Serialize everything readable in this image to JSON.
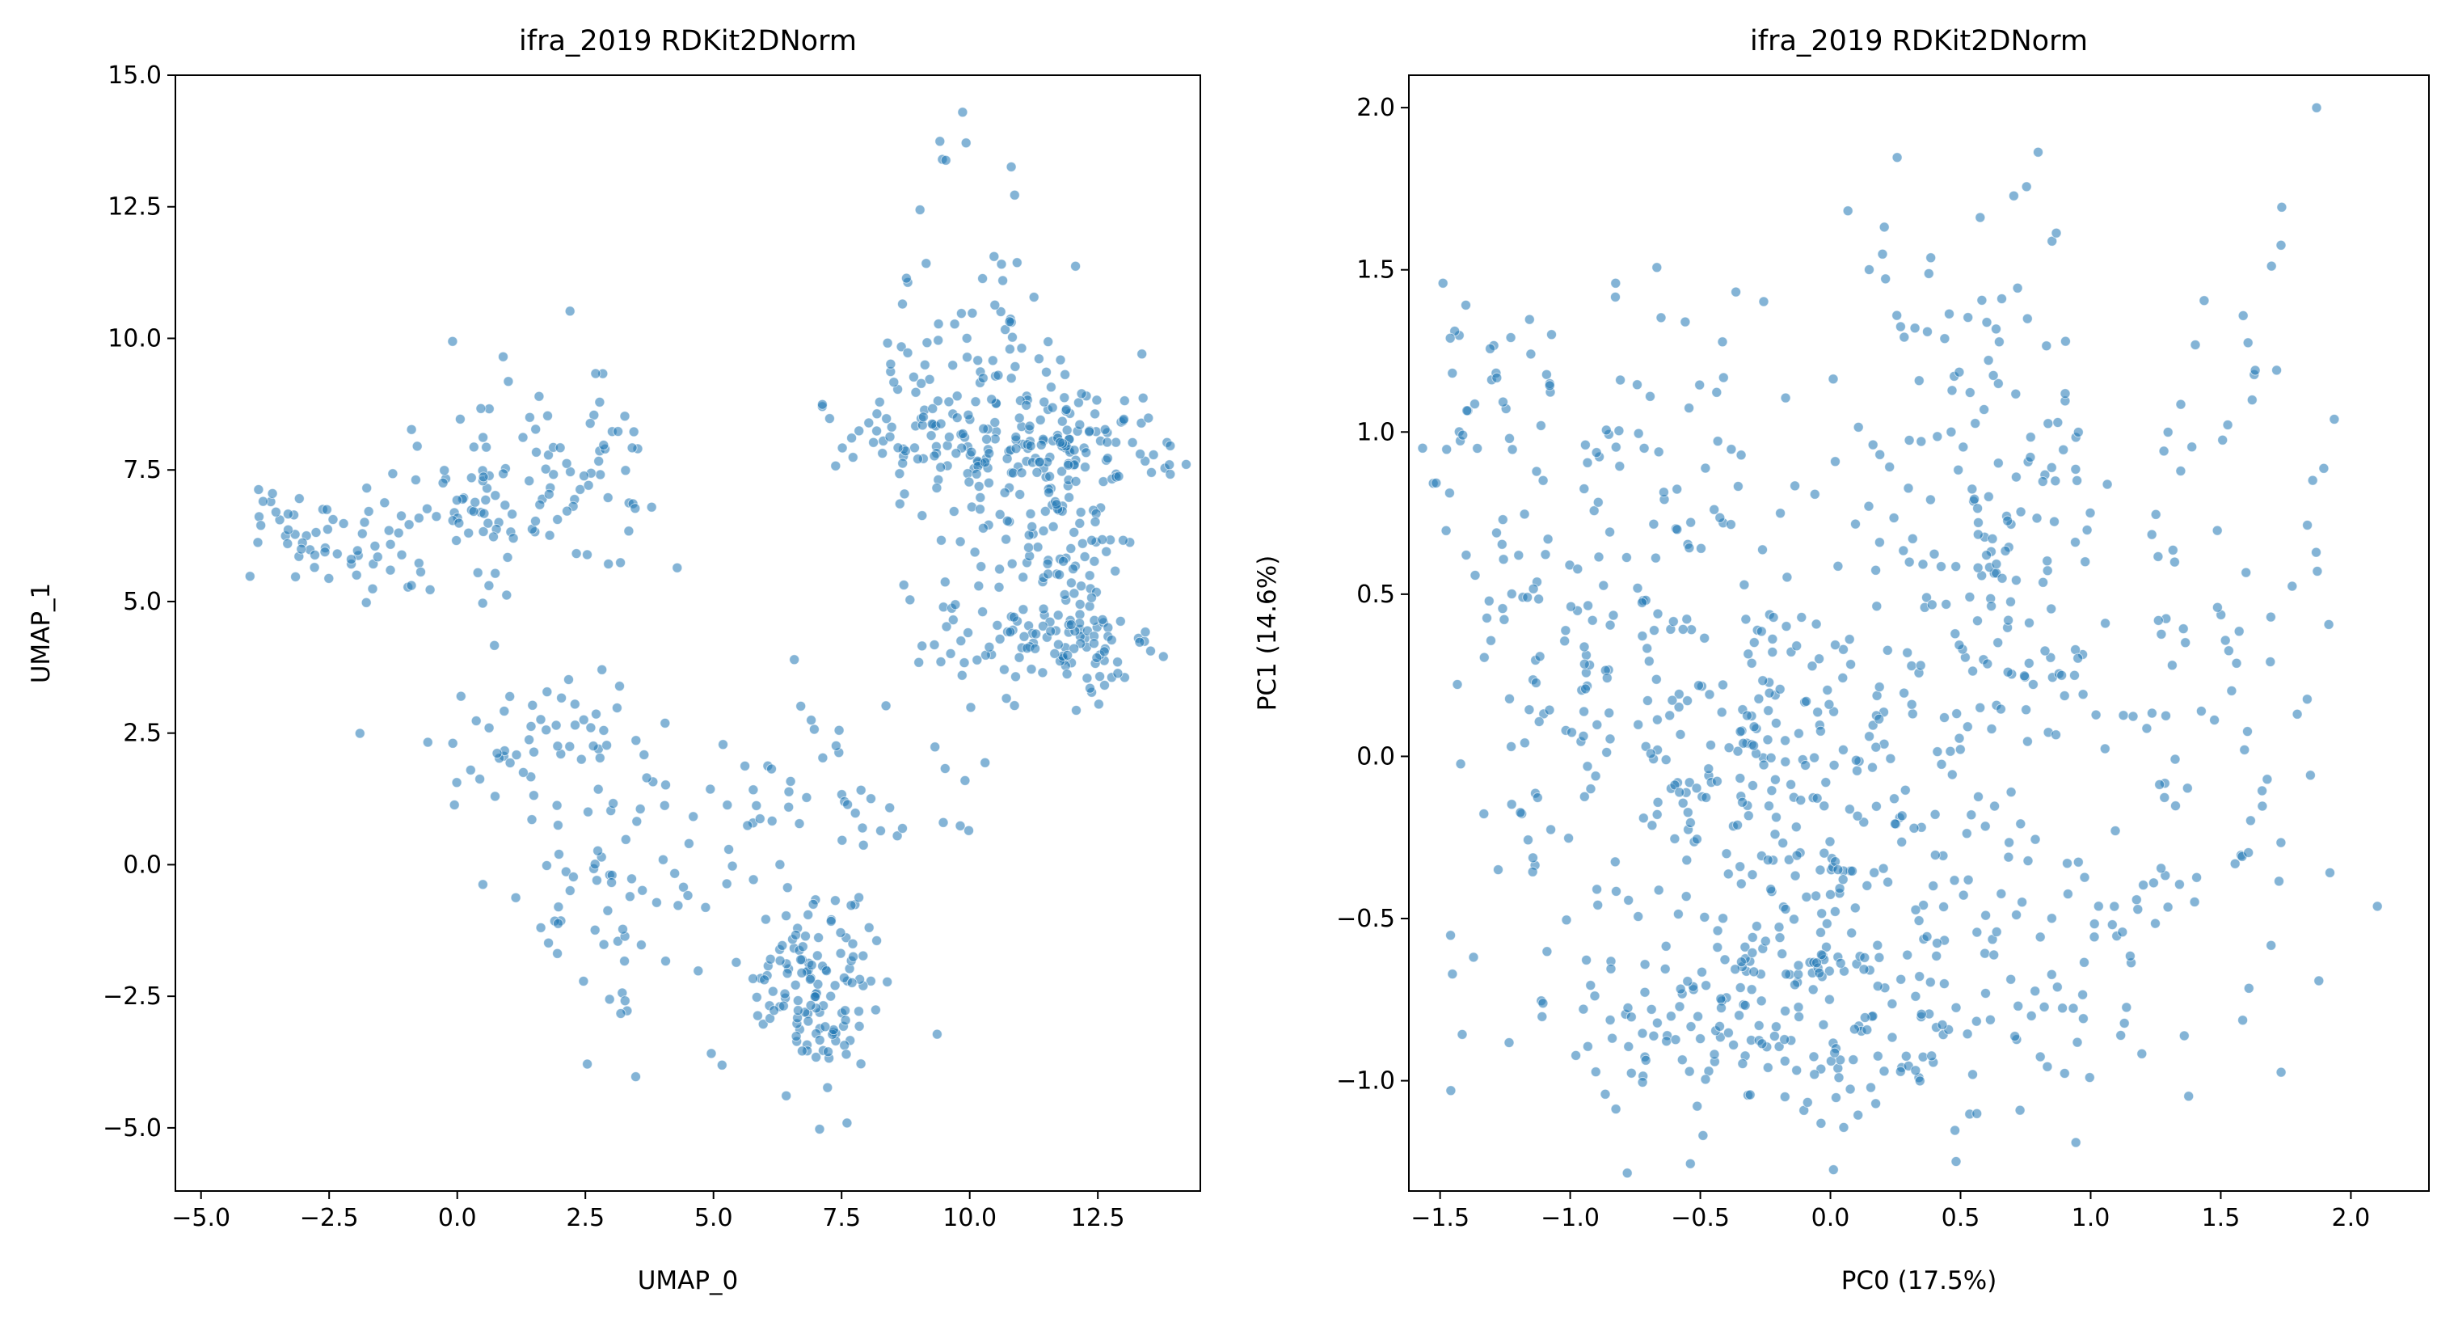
{
  "chart_data": [
    {
      "type": "scatter",
      "title": "ifra_2019 RDKit2DNorm",
      "xlabel": "UMAP_0",
      "ylabel": "UMAP_1",
      "xlim": [
        -5.5,
        14.5
      ],
      "ylim": [
        -6.2,
        15.0
      ],
      "xticks": [
        -5.0,
        -2.5,
        0.0,
        2.5,
        5.0,
        7.5,
        10.0,
        12.5
      ],
      "xtick_labels": [
        "−5.0",
        "−2.5",
        "0.0",
        "2.5",
        "5.0",
        "7.5",
        "10.0",
        "12.5"
      ],
      "yticks": [
        -5.0,
        -2.5,
        0.0,
        2.5,
        5.0,
        7.5,
        10.0,
        12.5,
        15.0
      ],
      "ytick_labels": [
        "−5.0",
        "−2.5",
        "0.0",
        "2.5",
        "5.0",
        "7.5",
        "10.0",
        "12.5",
        "15.0"
      ],
      "grid": false,
      "marker_color": "#1f77b4",
      "marker_alpha": 0.55,
      "clusters": [
        {
          "center": [
            -2.5,
            6.2
          ],
          "spread": [
            0.9,
            0.6
          ],
          "count": 60
        },
        {
          "center": [
            0.6,
            7.0
          ],
          "spread": [
            0.8,
            0.9
          ],
          "count": 60
        },
        {
          "center": [
            2.4,
            7.3
          ],
          "spread": [
            0.9,
            1.0
          ],
          "count": 60
        },
        {
          "center": [
            10.2,
            8.1
          ],
          "spread": [
            1.4,
            0.7
          ],
          "count": 150
        },
        {
          "center": [
            10.0,
            10.2
          ],
          "spread": [
            0.8,
            1.1
          ],
          "count": 50
        },
        {
          "center": [
            11.8,
            6.2
          ],
          "spread": [
            0.5,
            1.4
          ],
          "count": 110
        },
        {
          "center": [
            12.0,
            4.2
          ],
          "spread": [
            0.8,
            0.4
          ],
          "count": 60
        },
        {
          "center": [
            10.3,
            5.0
          ],
          "spread": [
            0.8,
            0.8
          ],
          "count": 50
        },
        {
          "center": [
            12.2,
            8.3
          ],
          "spread": [
            1.0,
            0.6
          ],
          "count": 40
        },
        {
          "center": [
            7.0,
            -2.4
          ],
          "spread": [
            0.7,
            0.9
          ],
          "count": 120
        },
        {
          "center": [
            2.8,
            -0.4
          ],
          "spread": [
            0.9,
            1.2
          ],
          "count": 60
        },
        {
          "center": [
            2.0,
            2.3
          ],
          "spread": [
            1.5,
            0.7
          ],
          "count": 50
        },
        {
          "center": [
            8.0,
            1.5
          ],
          "spread": [
            1.5,
            1.0
          ],
          "count": 45
        },
        {
          "center": [
            5.5,
            0.5
          ],
          "spread": [
            0.8,
            1.4
          ],
          "count": 25
        },
        {
          "center": [
            9.9,
            13.5
          ],
          "spread": [
            0.4,
            0.5
          ],
          "count": 6
        }
      ],
      "seed": 7
    },
    {
      "type": "scatter",
      "title": "ifra_2019 RDKit2DNorm",
      "xlabel": "PC0 (17.5%)",
      "ylabel": "PC1 (14.6%)",
      "xlim": [
        -1.62,
        2.3
      ],
      "ylim": [
        -1.34,
        2.1
      ],
      "xticks": [
        -1.5,
        -1.0,
        -0.5,
        0.0,
        0.5,
        1.0,
        1.5,
        2.0
      ],
      "xtick_labels": [
        "−1.5",
        "−1.0",
        "−0.5",
        "0.0",
        "0.5",
        "1.0",
        "1.5",
        "2.0"
      ],
      "yticks": [
        -1.0,
        -0.5,
        0.0,
        0.5,
        1.0,
        1.5,
        2.0
      ],
      "yticks_labels_note": "",
      "ytick_labels": [
        "−1.0",
        "−0.5",
        "0.0",
        "0.5",
        "1.0",
        "1.5",
        "2.0"
      ],
      "grid": false,
      "marker_color": "#1f77b4",
      "marker_alpha": 0.55,
      "clusters": [
        {
          "center": [
            -0.2,
            -0.1
          ],
          "spread": [
            0.35,
            0.35
          ],
          "count": 260
        },
        {
          "center": [
            -0.1,
            -0.8
          ],
          "spread": [
            0.55,
            0.2
          ],
          "count": 200
        },
        {
          "center": [
            -0.9,
            0.3
          ],
          "spread": [
            0.3,
            0.45
          ],
          "count": 110
        },
        {
          "center": [
            -1.3,
            1.05
          ],
          "spread": [
            0.15,
            0.25
          ],
          "count": 40
        },
        {
          "center": [
            -0.7,
            0.9
          ],
          "spread": [
            0.3,
            0.35
          ],
          "count": 60
        },
        {
          "center": [
            0.65,
            0.55
          ],
          "spread": [
            0.2,
            0.4
          ],
          "count": 110
        },
        {
          "center": [
            0.4,
            1.3
          ],
          "spread": [
            0.25,
            0.3
          ],
          "count": 45
        },
        {
          "center": [
            1.4,
            0.3
          ],
          "spread": [
            0.4,
            0.5
          ],
          "count": 90
        },
        {
          "center": [
            0.9,
            -0.6
          ],
          "spread": [
            0.45,
            0.3
          ],
          "count": 70
        },
        {
          "center": [
            1.7,
            1.2
          ],
          "spread": [
            0.3,
            0.3
          ],
          "count": 14
        }
      ],
      "seed": 19
    }
  ]
}
